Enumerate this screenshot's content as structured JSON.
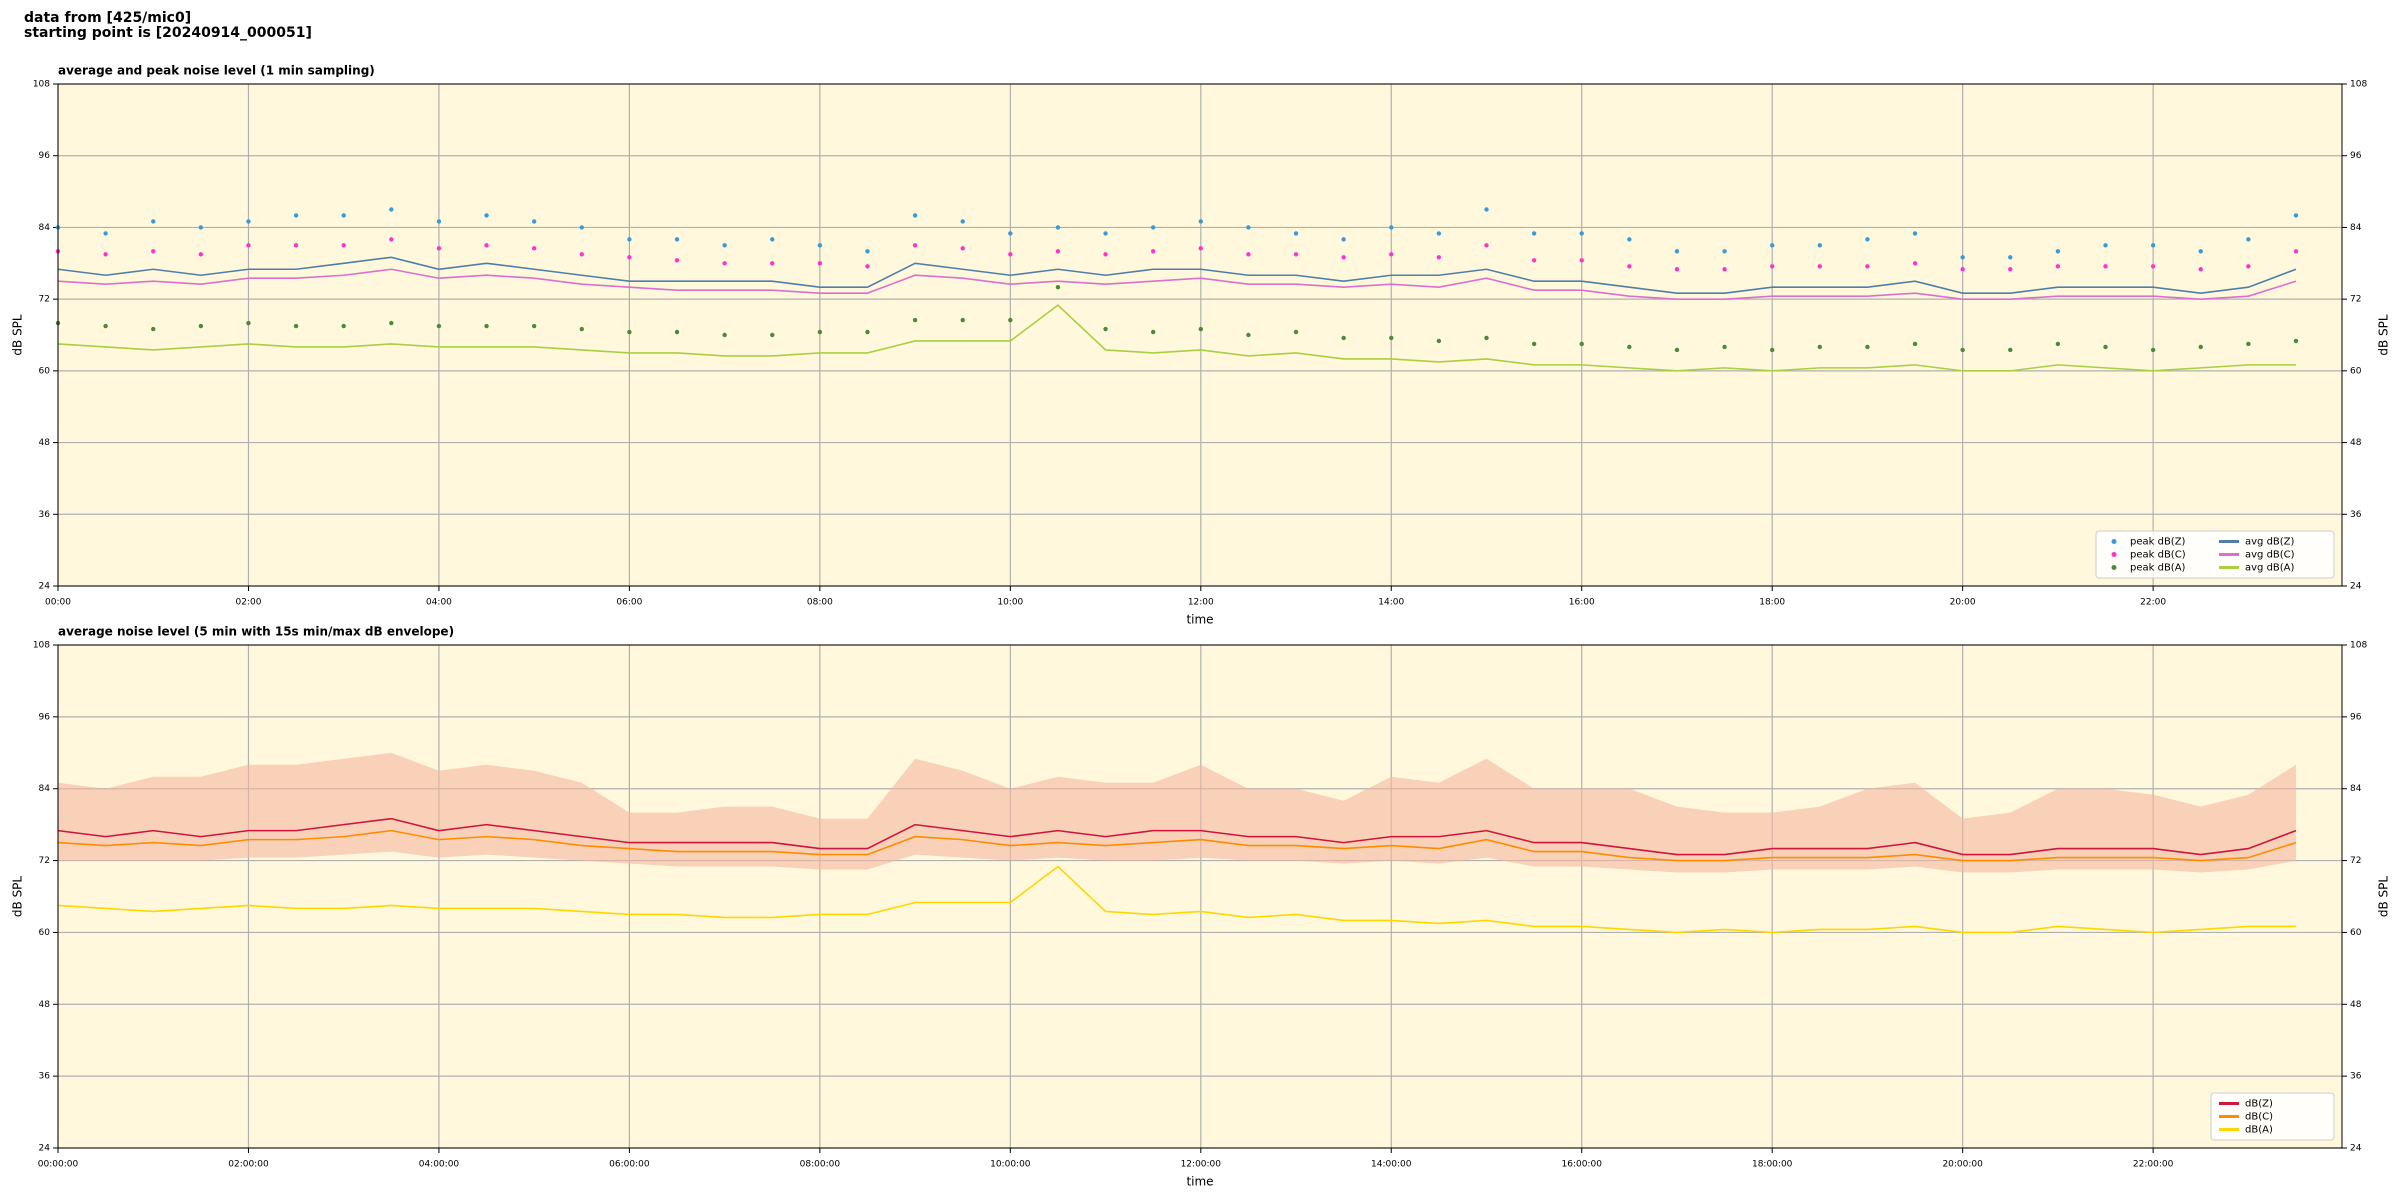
{
  "page_title": [
    "data from [425/mic0]",
    "starting point is [20240914_000051]"
  ],
  "chart_data": [
    {
      "type": "line",
      "title": "average and peak noise level (1 min sampling)",
      "xlabel": "time",
      "ylabel": "dB SPL",
      "y2label": "dB SPL",
      "x": [
        "00:00",
        "00:30",
        "01:00",
        "01:30",
        "02:00",
        "02:30",
        "03:00",
        "03:30",
        "04:00",
        "04:30",
        "05:00",
        "05:30",
        "06:00",
        "06:30",
        "07:00",
        "07:30",
        "08:00",
        "08:30",
        "09:00",
        "09:30",
        "10:00",
        "10:30",
        "11:00",
        "11:30",
        "12:00",
        "12:30",
        "13:00",
        "13:30",
        "14:00",
        "14:30",
        "15:00",
        "15:30",
        "16:00",
        "16:30",
        "17:00",
        "17:30",
        "18:00",
        "18:30",
        "19:00",
        "19:30",
        "20:00",
        "20:30",
        "21:00",
        "21:30",
        "22:00",
        "22:30",
        "23:00",
        "23:30"
      ],
      "xlim": [
        "00:00",
        "23:59"
      ],
      "xticks": [
        "00:00",
        "02:00",
        "04:00",
        "06:00",
        "08:00",
        "10:00",
        "12:00",
        "14:00",
        "16:00",
        "18:00",
        "20:00",
        "22:00"
      ],
      "ylim": [
        24,
        108
      ],
      "yticks": [
        24,
        36,
        48,
        60,
        72,
        84,
        96,
        108
      ],
      "y2lim": [
        24,
        108
      ],
      "y2ticks": [
        24,
        36,
        48,
        60,
        72,
        84,
        96,
        108
      ],
      "grid": true,
      "legend": "lower right",
      "legend_columns": 2,
      "series": [
        {
          "name": "peak dB(Z)",
          "style": "scatter",
          "color": "#3a9ad9",
          "values": [
            84,
            83,
            85,
            84,
            85,
            86,
            86,
            87,
            85,
            86,
            85,
            84,
            82,
            82,
            81,
            82,
            81,
            80,
            86,
            85,
            83,
            84,
            83,
            84,
            85,
            84,
            83,
            82,
            84,
            83,
            87,
            83,
            83,
            82,
            80,
            80,
            81,
            81,
            82,
            83,
            79,
            79,
            80,
            81,
            81,
            80,
            82,
            86
          ]
        },
        {
          "name": "peak dB(C)",
          "style": "scatter",
          "color": "#ff33cc",
          "values": [
            80,
            79.5,
            80,
            79.5,
            81,
            81,
            81,
            82,
            80.5,
            81,
            80.5,
            79.5,
            79,
            78.5,
            78,
            78,
            78,
            77.5,
            81,
            80.5,
            79.5,
            80,
            79.5,
            80,
            80.5,
            79.5,
            79.5,
            79,
            79.5,
            79,
            81,
            78.5,
            78.5,
            77.5,
            77,
            77,
            77.5,
            77.5,
            77.5,
            78,
            77,
            77,
            77.5,
            77.5,
            77.5,
            77,
            77.5,
            80
          ]
        },
        {
          "name": "peak dB(A)",
          "style": "scatter",
          "color": "#4a8a3a",
          "values": [
            68,
            67.5,
            67,
            67.5,
            68,
            67.5,
            67.5,
            68,
            67.5,
            67.5,
            67.5,
            67,
            66.5,
            66.5,
            66,
            66,
            66.5,
            66.5,
            68.5,
            68.5,
            68.5,
            74,
            67,
            66.5,
            67,
            66,
            66.5,
            65.5,
            65.5,
            65,
            65.5,
            64.5,
            64.5,
            64,
            63.5,
            64,
            63.5,
            64,
            64,
            64.5,
            63.5,
            63.5,
            64.5,
            64,
            63.5,
            64,
            64.5,
            65
          ]
        },
        {
          "name": "avg dB(Z)",
          "style": "line",
          "color": "#4e7fa8",
          "values": [
            77,
            76,
            77,
            76,
            77,
            77,
            78,
            79,
            77,
            78,
            77,
            76,
            75,
            75,
            75,
            75,
            74,
            74,
            78,
            77,
            76,
            77,
            76,
            77,
            77,
            76,
            76,
            75,
            76,
            76,
            77,
            75,
            75,
            74,
            73,
            73,
            74,
            74,
            74,
            75,
            73,
            73,
            74,
            74,
            74,
            73,
            74,
            77
          ]
        },
        {
          "name": "avg dB(C)",
          "style": "line",
          "color": "#d970d0",
          "values": [
            75,
            74.5,
            75,
            74.5,
            75.5,
            75.5,
            76,
            77,
            75.5,
            76,
            75.5,
            74.5,
            74,
            73.5,
            73.5,
            73.5,
            73,
            73,
            76,
            75.5,
            74.5,
            75,
            74.5,
            75,
            75.5,
            74.5,
            74.5,
            74,
            74.5,
            74,
            75.5,
            73.5,
            73.5,
            72.5,
            72,
            72,
            72.5,
            72.5,
            72.5,
            73,
            72,
            72,
            72.5,
            72.5,
            72.5,
            72,
            72.5,
            75
          ]
        },
        {
          "name": "avg dB(A)",
          "style": "line",
          "color": "#a8d040",
          "values": [
            64.5,
            64,
            63.5,
            64,
            64.5,
            64,
            64,
            64.5,
            64,
            64,
            64,
            63.5,
            63,
            63,
            62.5,
            62.5,
            63,
            63,
            65,
            65,
            65,
            71,
            63.5,
            63,
            63.5,
            62.5,
            63,
            62,
            62,
            61.5,
            62,
            61,
            61,
            60.5,
            60,
            60.5,
            60,
            60.5,
            60.5,
            61,
            60,
            60,
            61,
            60.5,
            60,
            60.5,
            61,
            61
          ]
        }
      ]
    },
    {
      "type": "line",
      "title": "average noise level (5 min with 15s min/max dB envelope)",
      "xlabel": "time",
      "ylabel": "dB SPL",
      "y2label": "dB SPL",
      "x": [
        "00:00:00",
        "00:30:00",
        "01:00:00",
        "01:30:00",
        "02:00:00",
        "02:30:00",
        "03:00:00",
        "03:30:00",
        "04:00:00",
        "04:30:00",
        "05:00:00",
        "05:30:00",
        "06:00:00",
        "06:30:00",
        "07:00:00",
        "07:30:00",
        "08:00:00",
        "08:30:00",
        "09:00:00",
        "09:30:00",
        "10:00:00",
        "10:30:00",
        "11:00:00",
        "11:30:00",
        "12:00:00",
        "12:30:00",
        "13:00:00",
        "13:30:00",
        "14:00:00",
        "14:30:00",
        "15:00:00",
        "15:30:00",
        "16:00:00",
        "16:30:00",
        "17:00:00",
        "17:30:00",
        "18:00:00",
        "18:30:00",
        "19:00:00",
        "19:30:00",
        "20:00:00",
        "20:30:00",
        "21:00:00",
        "21:30:00",
        "22:00:00",
        "22:30:00",
        "23:00:00",
        "23:30:00"
      ],
      "xlim": [
        "00:00:00",
        "23:59:00"
      ],
      "xticks": [
        "00:00:00",
        "02:00:00",
        "04:00:00",
        "06:00:00",
        "08:00:00",
        "10:00:00",
        "12:00:00",
        "14:00:00",
        "16:00:00",
        "18:00:00",
        "20:00:00",
        "22:00:00"
      ],
      "ylim": [
        24,
        108
      ],
      "yticks": [
        24,
        36,
        48,
        60,
        72,
        84,
        96,
        108
      ],
      "y2lim": [
        24,
        108
      ],
      "y2ticks": [
        24,
        36,
        48,
        60,
        72,
        84,
        96,
        108
      ],
      "grid": true,
      "legend": "lower right",
      "legend_columns": 1,
      "envelope": {
        "color": "#f4b8a0",
        "low": [
          72,
          72,
          72,
          72,
          72.5,
          72.5,
          73,
          73.5,
          72.5,
          73,
          72.5,
          72,
          71.5,
          71,
          71,
          71,
          70.5,
          70.5,
          73,
          72.5,
          72,
          72.5,
          72,
          72,
          72.5,
          72,
          72,
          71.5,
          72,
          71.5,
          72.5,
          71,
          71,
          70.5,
          70,
          70,
          70.5,
          70.5,
          70.5,
          71,
          70,
          70,
          70.5,
          70.5,
          70.5,
          70,
          70.5,
          72
        ],
        "high": [
          85,
          84,
          86,
          86,
          88,
          88,
          89,
          90,
          87,
          88,
          87,
          85,
          80,
          80,
          81,
          81,
          79,
          79,
          89,
          87,
          84,
          86,
          85,
          85,
          88,
          84,
          84,
          82,
          86,
          85,
          89,
          84,
          84,
          84,
          81,
          80,
          80,
          81,
          84,
          85,
          79,
          80,
          84,
          84,
          83,
          81,
          83,
          88
        ]
      },
      "series": [
        {
          "name": "dB(Z)",
          "style": "line",
          "color": "#d0143c",
          "values": [
            77,
            76,
            77,
            76,
            77,
            77,
            78,
            79,
            77,
            78,
            77,
            76,
            75,
            75,
            75,
            75,
            74,
            74,
            78,
            77,
            76,
            77,
            76,
            77,
            77,
            76,
            76,
            75,
            76,
            76,
            77,
            75,
            75,
            74,
            73,
            73,
            74,
            74,
            74,
            75,
            73,
            73,
            74,
            74,
            74,
            73,
            74,
            77
          ]
        },
        {
          "name": "dB(C)",
          "style": "line",
          "color": "#ff8c00",
          "values": [
            75,
            74.5,
            75,
            74.5,
            75.5,
            75.5,
            76,
            77,
            75.5,
            76,
            75.5,
            74.5,
            74,
            73.5,
            73.5,
            73.5,
            73,
            73,
            76,
            75.5,
            74.5,
            75,
            74.5,
            75,
            75.5,
            74.5,
            74.5,
            74,
            74.5,
            74,
            75.5,
            73.5,
            73.5,
            72.5,
            72,
            72,
            72.5,
            72.5,
            72.5,
            73,
            72,
            72,
            72.5,
            72.5,
            72.5,
            72,
            72.5,
            75
          ]
        },
        {
          "name": "dB(A)",
          "style": "line",
          "color": "#ffd700",
          "values": [
            64.5,
            64,
            63.5,
            64,
            64.5,
            64,
            64,
            64.5,
            64,
            64,
            64,
            63.5,
            63,
            63,
            62.5,
            62.5,
            63,
            63,
            65,
            65,
            65,
            71,
            63.5,
            63,
            63.5,
            62.5,
            63,
            62,
            62,
            61.5,
            62,
            61,
            61,
            60.5,
            60,
            60.5,
            60,
            60.5,
            60.5,
            61,
            60,
            60,
            61,
            60.5,
            60,
            60.5,
            61,
            61
          ]
        }
      ]
    }
  ]
}
